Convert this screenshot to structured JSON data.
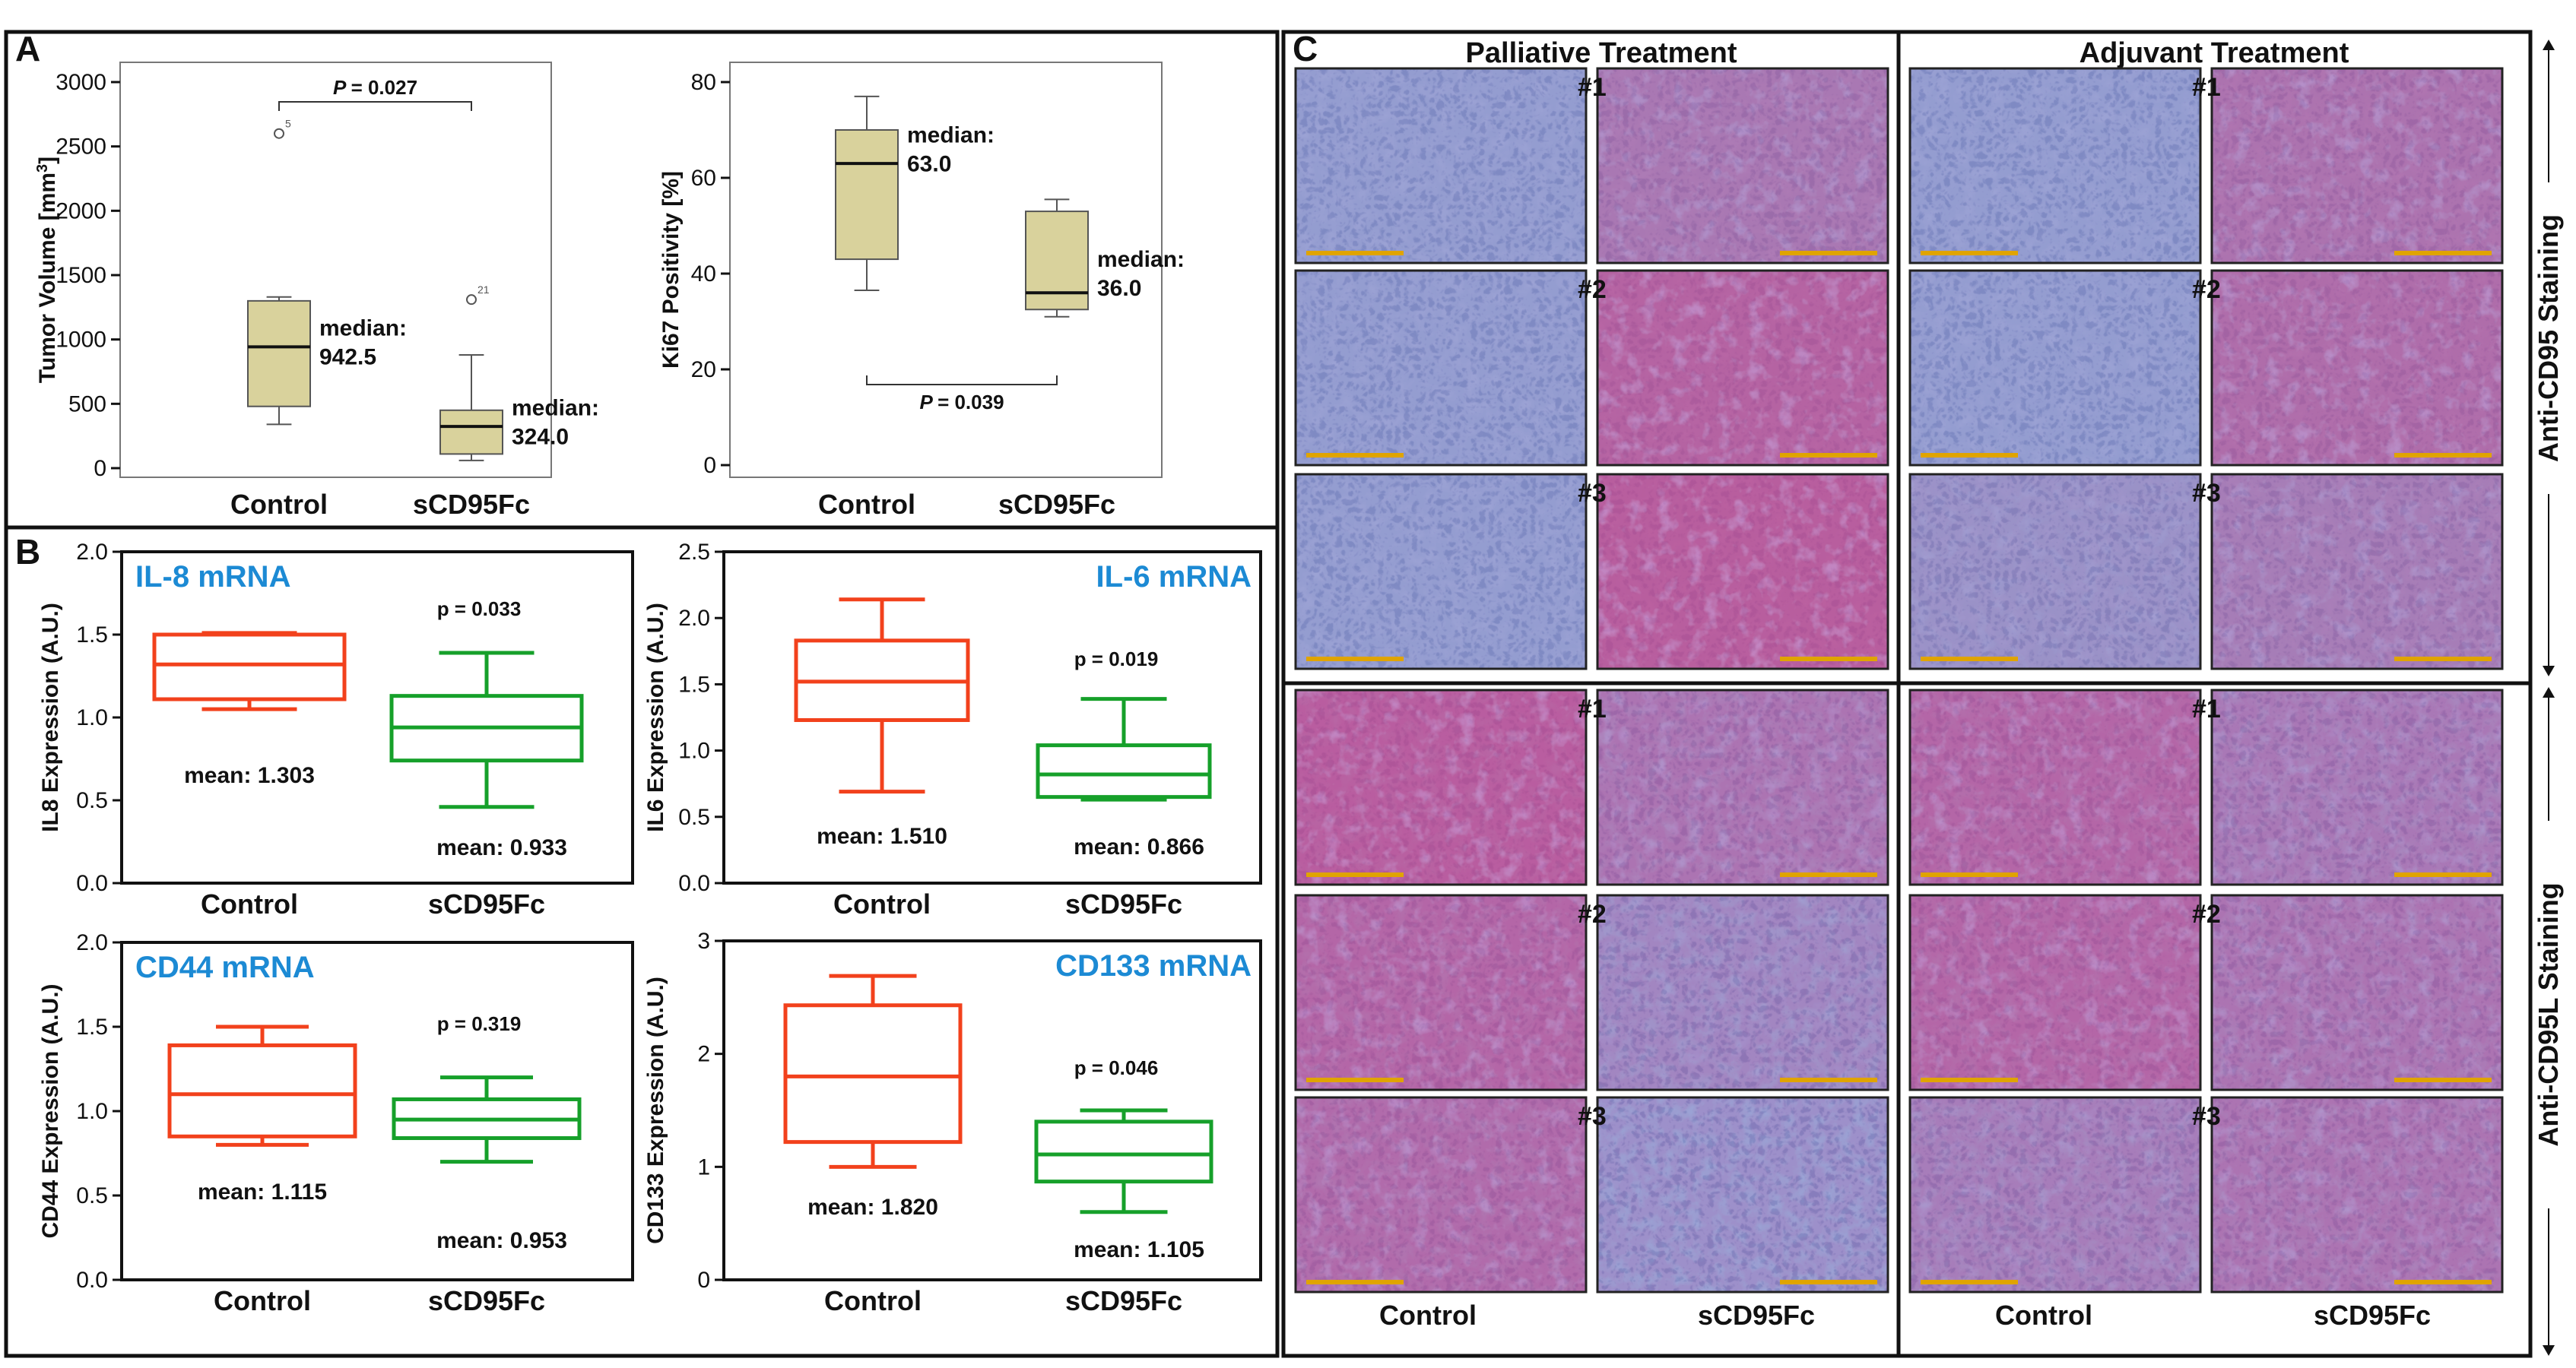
{
  "figure": {
    "panels": [
      "A",
      "B",
      "C"
    ]
  },
  "chart_data": [
    {
      "id": "tumor",
      "type": "box",
      "panel": "A",
      "title": "",
      "ylabel": "Tumor Volume [mm³]",
      "ylim": [
        0,
        3000
      ],
      "yticks": [
        "0",
        "500",
        "1000",
        "1500",
        "2000",
        "2500",
        "3000"
      ],
      "categories": [
        "Control",
        "sCD95Fc"
      ],
      "boxes": [
        {
          "name": "Control",
          "low": 340,
          "q1": 480,
          "median": 942.5,
          "q3": 1300,
          "high": 1330,
          "outliers": [
            {
              "value": 2600,
              "label": "5"
            }
          ]
        },
        {
          "name": "sCD95Fc",
          "low": 60,
          "q1": 110,
          "median": 324.0,
          "q3": 450,
          "high": 880,
          "outliers": [
            {
              "value": 1310,
              "label": "21"
            }
          ]
        }
      ],
      "annotations": [
        {
          "cat": 0,
          "value": 960,
          "line1": "median:",
          "line2": "942.5"
        },
        {
          "cat": 1,
          "value": 340,
          "line1": "median:",
          "line2": "324.0"
        }
      ],
      "pvalue": {
        "label": "P",
        "text": "= 0.027",
        "position": "top"
      }
    },
    {
      "id": "ki67",
      "type": "box",
      "panel": "A",
      "title": "",
      "ylabel": "Ki67 Positivity [%]",
      "ylim": [
        0,
        80
      ],
      "yticks": [
        "0",
        "20",
        "40",
        "60",
        "80"
      ],
      "categories": [
        "Control",
        "sCD95Fc"
      ],
      "boxes": [
        {
          "name": "Control",
          "low": 36.5,
          "q1": 43,
          "median": 63.0,
          "q3": 70,
          "high": 77,
          "outliers": []
        },
        {
          "name": "sCD95Fc",
          "low": 31,
          "q1": 32.5,
          "median": 36.0,
          "q3": 53,
          "high": 55.5,
          "outliers": []
        }
      ],
      "annotations": [
        {
          "cat": 0,
          "value": 65.5,
          "line1": "median:",
          "line2": "63.0"
        },
        {
          "cat": 1,
          "value": 39.5,
          "line1": "median:",
          "line2": "36.0"
        }
      ],
      "pvalue": {
        "label": "P",
        "text": "= 0.039",
        "position": "bottom"
      }
    },
    {
      "id": "il8",
      "type": "box",
      "panel": "B",
      "title": "IL-8 mRNA",
      "ylabel": "IL8 Expression (A.U.)",
      "ylim": [
        0,
        2.0
      ],
      "yticks": [
        "0.0",
        "0.5",
        "1.0",
        "1.5",
        "2.0"
      ],
      "categories": [
        "Control",
        "sCD95Fc"
      ],
      "boxes": [
        {
          "name": "Control",
          "low": 1.05,
          "q1": 1.11,
          "median": 1.32,
          "q3": 1.5,
          "high": 1.51,
          "mean": 1.303,
          "outliers": []
        },
        {
          "name": "sCD95Fc",
          "low": 0.46,
          "q1": 0.74,
          "median": 0.94,
          "q3": 1.13,
          "high": 1.39,
          "mean": 0.933,
          "outliers": []
        }
      ],
      "means": [
        "mean: 1.303",
        "mean: 0.933"
      ],
      "pvalue": "p = 0.033"
    },
    {
      "id": "il6",
      "type": "box",
      "panel": "B",
      "title": "IL-6 mRNA",
      "ylabel": "IL6 Expression (A.U.)",
      "ylim": [
        0,
        2.5
      ],
      "yticks": [
        "0.0",
        "0.5",
        "1.0",
        "1.5",
        "2.0",
        "2.5"
      ],
      "categories": [
        "Control",
        "sCD95Fc"
      ],
      "boxes": [
        {
          "name": "Control",
          "low": 0.69,
          "q1": 1.23,
          "median": 1.52,
          "q3": 1.83,
          "high": 2.14,
          "mean": 1.51,
          "outliers": []
        },
        {
          "name": "sCD95Fc",
          "low": 0.63,
          "q1": 0.65,
          "median": 0.82,
          "q3": 1.04,
          "high": 1.39,
          "mean": 0.866,
          "outliers": []
        }
      ],
      "means": [
        "mean: 1.510",
        "mean: 0.866"
      ],
      "pvalue": "p = 0.019"
    },
    {
      "id": "cd44",
      "type": "box",
      "panel": "B",
      "title": "CD44 mRNA",
      "ylabel": "CD44 Expression (A.U.)",
      "ylim": [
        0,
        2.0
      ],
      "yticks": [
        "0.0",
        "0.5",
        "1.0",
        "1.5",
        "2.0"
      ],
      "categories": [
        "Control",
        "sCD95Fc"
      ],
      "boxes": [
        {
          "name": "Control",
          "low": 0.8,
          "q1": 0.85,
          "median": 1.1,
          "q3": 1.39,
          "high": 1.5,
          "mean": 1.115,
          "outliers": []
        },
        {
          "name": "sCD95Fc",
          "low": 0.7,
          "q1": 0.84,
          "median": 0.95,
          "q3": 1.07,
          "high": 1.2,
          "mean": 0.953,
          "outliers": []
        }
      ],
      "means": [
        "mean: 1.115",
        "mean: 0.953"
      ],
      "pvalue": "p = 0.319"
    },
    {
      "id": "cd133",
      "type": "box",
      "panel": "B",
      "title": "CD133 mRNA",
      "ylabel": "CD133 Expression (A.U.)",
      "ylim": [
        0,
        3
      ],
      "yticks": [
        "0",
        "1",
        "2",
        "3"
      ],
      "categories": [
        "Control",
        "sCD95Fc"
      ],
      "boxes": [
        {
          "name": "Control",
          "low": 1.0,
          "q1": 1.22,
          "median": 1.8,
          "q3": 2.43,
          "high": 2.69,
          "mean": 1.82,
          "outliers": []
        },
        {
          "name": "sCD95Fc",
          "low": 0.6,
          "q1": 0.87,
          "median": 1.11,
          "q3": 1.4,
          "high": 1.5,
          "mean": 1.105,
          "outliers": []
        }
      ],
      "means": [
        "mean: 1.820",
        "mean: 1.105"
      ],
      "pvalue": "p = 0.046"
    }
  ],
  "histology": {
    "columns": [
      "Palliative Treatment",
      "Adjuvant Treatment"
    ],
    "rows": [
      "#1",
      "#2",
      "#3"
    ],
    "row_groups": [
      "Anti-CD95 Staining",
      "Anti-CD95L Staining"
    ],
    "bottom_labels": [
      "Control",
      "sCD95Fc",
      "Control",
      "sCD95Fc"
    ],
    "colors": {
      "hematoxylin": "#8e9bd2",
      "hematoxylin_dark": "#6f7ab8",
      "stroma": "#c9d2ea",
      "magenta": "#d0357e",
      "cd95l_base": "#a775be",
      "scale_bar": "#e0a400"
    }
  },
  "colors": {
    "control_B": "#f2411c",
    "treat_B": "#16a02a",
    "box_A": "#d9d29c",
    "box_A_edge": "#555555",
    "title_blue": "#1c8ad4"
  }
}
